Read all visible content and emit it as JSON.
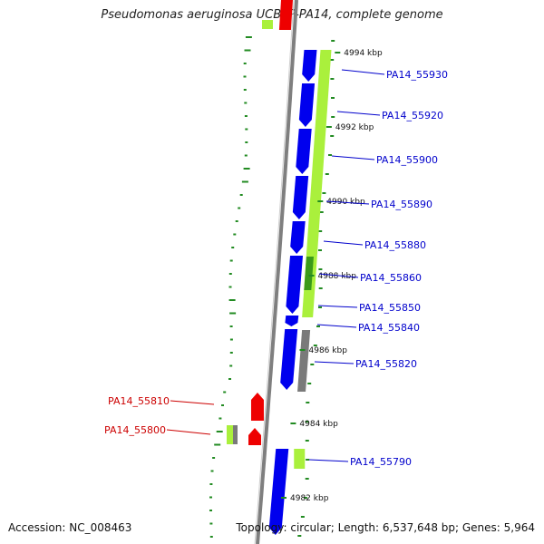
{
  "title": "Pseudomonas aeruginosa UCBPP-PA14, complete genome",
  "accession": "Accession: NC_008463",
  "topology": "Topology: circular; Length: 6,537,648 bp; Genes: 5,964",
  "colors": {
    "cds": "#0000ee",
    "gene": "#ee0000",
    "accent_green": "#aaf03c",
    "dark_green": "#3a9a1a",
    "gc_skew": "#228b22",
    "backbone": "#7f7f7f",
    "gray_feature": "#7a7a7a",
    "label_blue": "#0000cc",
    "label_red": "#cc0000"
  },
  "positions_kbp": [
    {
      "kbp": 4994,
      "label": "4994 kbp"
    },
    {
      "kbp": 4992,
      "label": "4992 kbp"
    },
    {
      "kbp": 4990,
      "label": "4990 kbp"
    },
    {
      "kbp": 4988,
      "label": "4988 kbp"
    },
    {
      "kbp": 4986,
      "label": "4986 kbp"
    },
    {
      "kbp": 4984,
      "label": "4984 kbp"
    },
    {
      "kbp": 4982,
      "label": "4982 kbp"
    }
  ],
  "genes": [
    {
      "label": "PA14_55930",
      "strand": "right",
      "type": "cds"
    },
    {
      "label": "PA14_55920",
      "strand": "right",
      "type": "cds"
    },
    {
      "label": "PA14_55900",
      "strand": "right",
      "type": "cds"
    },
    {
      "label": "PA14_55890",
      "strand": "right",
      "type": "cds"
    },
    {
      "label": "PA14_55880",
      "strand": "right",
      "type": "cds"
    },
    {
      "label": "PA14_55860",
      "strand": "right",
      "type": "cds"
    },
    {
      "label": "PA14_55850",
      "strand": "right",
      "type": "cds"
    },
    {
      "label": "PA14_55840",
      "strand": "right",
      "type": "cds"
    },
    {
      "label": "PA14_55820",
      "strand": "right",
      "type": "cds"
    },
    {
      "label": "PA14_55810",
      "strand": "left",
      "type": "gene"
    },
    {
      "label": "PA14_55800",
      "strand": "left",
      "type": "gene"
    },
    {
      "label": "PA14_55790",
      "strand": "right",
      "type": "cds"
    }
  ]
}
